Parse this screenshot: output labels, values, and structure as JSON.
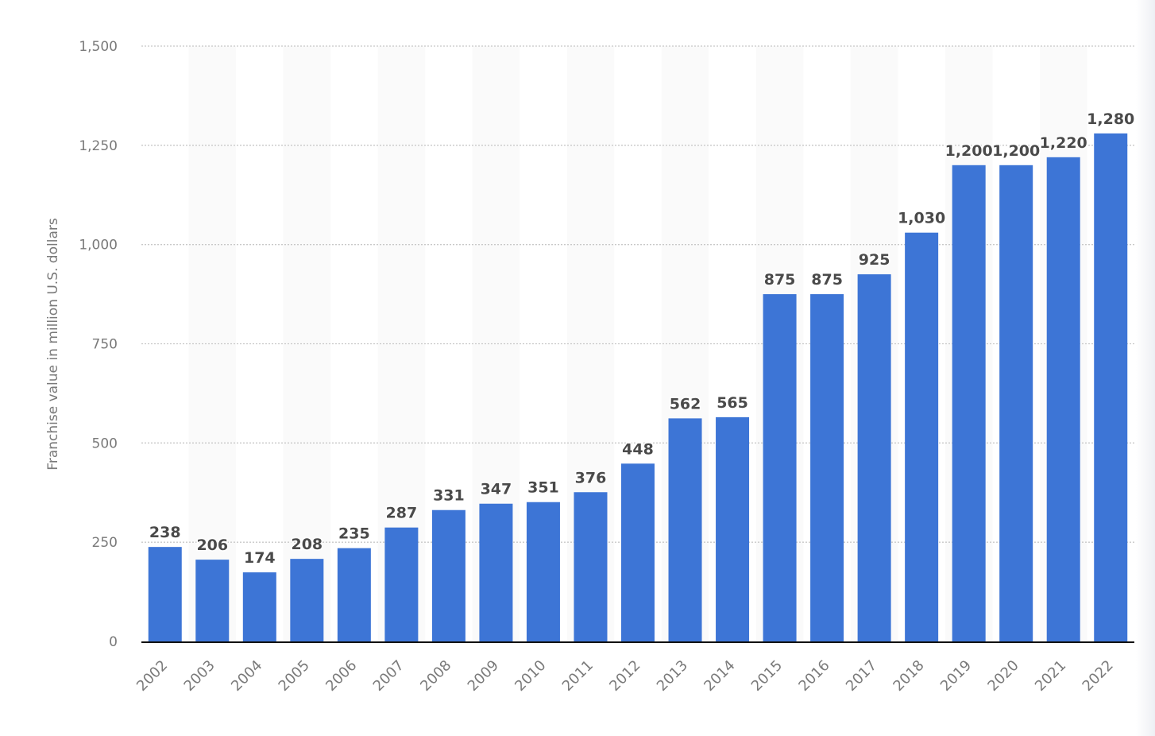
{
  "chart_data": {
    "type": "bar",
    "title": "",
    "xlabel": "",
    "ylabel": "Franchise value in million U.S. dollars",
    "categories": [
      "2002",
      "2003",
      "2004",
      "2005",
      "2006",
      "2007",
      "2008",
      "2009",
      "2010",
      "2011",
      "2012",
      "2013",
      "2014",
      "2015",
      "2016",
      "2017",
      "2018",
      "2019",
      "2020",
      "2021",
      "2022"
    ],
    "values": [
      238,
      206,
      174,
      208,
      235,
      287,
      331,
      347,
      351,
      376,
      448,
      562,
      565,
      875,
      875,
      925,
      1030,
      1200,
      1200,
      1220,
      1280
    ],
    "data_labels": [
      "238",
      "206",
      "174",
      "208",
      "235",
      "287",
      "331",
      "347",
      "351",
      "376",
      "448",
      "562",
      "565",
      "875",
      "875",
      "925",
      "1,030",
      "1,200",
      "1,200",
      "1,220",
      "1,280"
    ],
    "ylim": [
      0,
      1500
    ],
    "yticks": [
      0,
      250,
      500,
      750,
      1000,
      1250,
      1500
    ],
    "ytick_labels": [
      "0",
      "250",
      "500",
      "750",
      "1,000",
      "1,250",
      "1,500"
    ],
    "grid": true,
    "colors": {
      "bar": "#3d75d6",
      "band": "#fafafa",
      "grid": "#c8c8c8",
      "axis": "#111111",
      "data_label": "#4a4a4a",
      "tick_label": "#7a7a7a"
    }
  }
}
